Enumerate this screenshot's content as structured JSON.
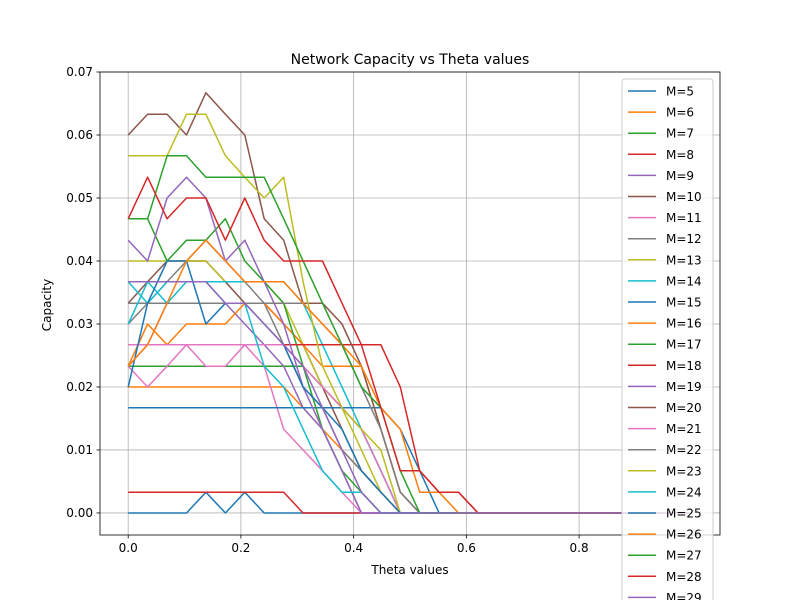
{
  "chart_data": {
    "type": "line",
    "title": "Network Capacity vs Theta values",
    "xlabel": "Theta values",
    "ylabel": "Capacity",
    "xlim": [
      -0.05,
      1.05
    ],
    "ylim": [
      -0.0035,
      0.07
    ],
    "xticks": [
      0.0,
      0.2,
      0.4,
      0.6,
      0.8
    ],
    "xtick_labels": [
      "0.0",
      "0.2",
      "0.4",
      "0.6",
      "0.8"
    ],
    "yticks": [
      0.0,
      0.01,
      0.02,
      0.03,
      0.04,
      0.05,
      0.06,
      0.07
    ],
    "ytick_labels": [
      "0.00",
      "0.01",
      "0.02",
      "0.03",
      "0.04",
      "0.05",
      "0.06",
      "0.07"
    ],
    "grid": true,
    "legend_position": "top-right",
    "x": [
      0,
      0.0345,
      0.069,
      0.1034,
      0.1379,
      0.1724,
      0.2069,
      0.2414,
      0.2759,
      0.3103,
      0.3448,
      0.3793,
      0.4138,
      0.4483,
      0.4828,
      0.5172,
      0.5517,
      0.5862,
      0.6207,
      0.6552,
      0.6897,
      0.7241,
      0.7586,
      0.7931,
      0.8276,
      0.8621,
      0.8966,
      0.931,
      0.9655,
      1.0
    ],
    "series": [
      {
        "name": "M=5",
        "color": "#1f77b4",
        "values": [
          0,
          0,
          0,
          0,
          0.0033,
          0,
          0.0033,
          0,
          0,
          0,
          0,
          0,
          0,
          0,
          0,
          0,
          0,
          0,
          0,
          0,
          0,
          0,
          0,
          0,
          0,
          0,
          0,
          0,
          0,
          0
        ]
      },
      {
        "name": "M=6",
        "color": "#ff7f0e",
        "values": [
          0.02,
          0.02,
          0.02,
          0.02,
          0.02,
          0.02,
          0.02,
          0.02,
          0.02,
          0.0167,
          0.0133,
          0.01,
          0.0067,
          0.0033,
          0,
          0,
          0,
          0,
          0,
          0,
          0,
          0,
          0,
          0,
          0,
          0,
          0,
          0,
          0,
          0
        ]
      },
      {
        "name": "M=7",
        "color": "#2ca02c",
        "values": [
          0.0233,
          0.0233,
          0.0233,
          0.0233,
          0.0233,
          0.0233,
          0.0233,
          0.0233,
          0.0233,
          0.0233,
          0.02,
          0.0167,
          0.0133,
          0.0067,
          0,
          0,
          0,
          0,
          0,
          0,
          0,
          0,
          0,
          0,
          0,
          0,
          0,
          0,
          0,
          0
        ]
      },
      {
        "name": "M=8",
        "color": "#d62728",
        "values": [
          0.0033,
          0.0033,
          0.0033,
          0.0033,
          0.0033,
          0.0033,
          0.0033,
          0.0033,
          0.0033,
          0,
          0,
          0,
          0,
          0,
          0,
          0,
          0,
          0,
          0,
          0,
          0,
          0,
          0,
          0,
          0,
          0,
          0,
          0,
          0,
          0
        ]
      },
      {
        "name": "M=9",
        "color": "#9467bd",
        "values": [
          0.0233,
          0.0267,
          0.0333,
          0.0333,
          0.0333,
          0.0333,
          0.03,
          0.0267,
          0.0233,
          0.0167,
          0.0133,
          0.0067,
          0,
          0,
          0,
          0,
          0,
          0,
          0,
          0,
          0,
          0,
          0,
          0,
          0,
          0,
          0,
          0,
          0,
          0
        ]
      },
      {
        "name": "M=10",
        "color": "#8c564b",
        "values": [
          0.0333,
          0.0367,
          0.04,
          0.04,
          0.04,
          0.0367,
          0.0333,
          0.0333,
          0.03,
          0.0267,
          0.02,
          0.0133,
          0.0067,
          0.0033,
          0,
          0,
          0,
          0,
          0,
          0,
          0,
          0,
          0,
          0,
          0,
          0,
          0,
          0,
          0,
          0
        ]
      },
      {
        "name": "M=11",
        "color": "#e377c2",
        "values": [
          0.0233,
          0.02,
          0.0233,
          0.0267,
          0.0233,
          0.0233,
          0.0267,
          0.0233,
          0.0133,
          0.01,
          0.0067,
          0.0033,
          0,
          0,
          0,
          0,
          0,
          0,
          0,
          0,
          0,
          0,
          0,
          0,
          0,
          0,
          0,
          0,
          0,
          0
        ]
      },
      {
        "name": "M=12",
        "color": "#7f7f7f",
        "values": [
          0.03,
          0.0333,
          0.0367,
          0.04,
          0.0433,
          0.04,
          0.0367,
          0.0333,
          0.0267,
          0.02,
          0.0167,
          0.01,
          0.0067,
          0.0033,
          0,
          0,
          0,
          0,
          0,
          0,
          0,
          0,
          0,
          0,
          0,
          0,
          0,
          0,
          0,
          0
        ]
      },
      {
        "name": "M=13",
        "color": "#bcbd22",
        "values": [
          0.04,
          0.04,
          0.04,
          0.04,
          0.04,
          0.0367,
          0.0367,
          0.0367,
          0.0333,
          0.0267,
          0.02,
          0.0167,
          0.01,
          0.0033,
          0,
          0,
          0,
          0,
          0,
          0,
          0,
          0,
          0,
          0,
          0,
          0,
          0,
          0,
          0,
          0
        ]
      },
      {
        "name": "M=14",
        "color": "#17becf",
        "values": [
          0.0367,
          0.0333,
          0.0367,
          0.0367,
          0.0367,
          0.0367,
          0.0367,
          0.0367,
          0.0367,
          0.0333,
          0.0267,
          0.02,
          0.0133,
          0.0067,
          0,
          0,
          0,
          0,
          0,
          0,
          0,
          0,
          0,
          0,
          0,
          0,
          0,
          0,
          0,
          0
        ]
      },
      {
        "name": "M=15",
        "color": "#1f77b4",
        "values": [
          0.0167,
          0.0167,
          0.0167,
          0.0167,
          0.0167,
          0.0167,
          0.0167,
          0.0167,
          0.0167,
          0.0167,
          0.0167,
          0.0167,
          0.0167,
          0.0167,
          0.0133,
          0.0067,
          0,
          0,
          0,
          0,
          0,
          0,
          0,
          0,
          0,
          0,
          0,
          0,
          0,
          0
        ]
      },
      {
        "name": "M=16",
        "color": "#ff7f0e",
        "values": [
          0.0233,
          0.03,
          0.0267,
          0.03,
          0.03,
          0.03,
          0.0333,
          0.0333,
          0.03,
          0.0267,
          0.0233,
          0.0233,
          0.0233,
          0.0133,
          0.0033,
          0,
          0,
          0,
          0,
          0,
          0,
          0,
          0,
          0,
          0,
          0,
          0,
          0,
          0,
          0
        ]
      },
      {
        "name": "M=17",
        "color": "#2ca02c",
        "values": [
          0.0467,
          0.0467,
          0.04,
          0.0433,
          0.0433,
          0.0467,
          0.04,
          0.0367,
          0.0333,
          0.0233,
          0.0133,
          0.0067,
          0.0033,
          0,
          0,
          0,
          0,
          0,
          0,
          0,
          0,
          0,
          0,
          0,
          0,
          0,
          0,
          0,
          0,
          0
        ]
      },
      {
        "name": "M=18",
        "color": "#d62728",
        "values": [
          0.0267,
          0.0267,
          0.0267,
          0.0267,
          0.0267,
          0.0267,
          0.0267,
          0.0267,
          0.0267,
          0.0267,
          0.0267,
          0.0267,
          0.0267,
          0.0267,
          0.02,
          0.0067,
          0.0033,
          0.0033,
          0,
          0,
          0,
          0,
          0,
          0,
          0,
          0,
          0,
          0,
          0,
          0
        ]
      },
      {
        "name": "M=19",
        "color": "#9467bd",
        "values": [
          0.0433,
          0.04,
          0.05,
          0.0533,
          0.05,
          0.04,
          0.0433,
          0.0367,
          0.03,
          0.02,
          0.0133,
          0.0067,
          0,
          0,
          0,
          0,
          0,
          0,
          0,
          0,
          0,
          0,
          0,
          0,
          0,
          0,
          0,
          0,
          0,
          0
        ]
      },
      {
        "name": "M=20",
        "color": "#8c564b",
        "values": [
          0.06,
          0.0633,
          0.0633,
          0.06,
          0.0667,
          0.0633,
          0.06,
          0.0467,
          0.0433,
          0.0333,
          0.0333,
          0.03,
          0.0233,
          0.0133,
          0.0033,
          0,
          0,
          0,
          0,
          0,
          0,
          0,
          0,
          0,
          0,
          0,
          0,
          0,
          0,
          0
        ]
      },
      {
        "name": "M=21",
        "color": "#e377c2",
        "values": [
          0.0267,
          0.0267,
          0.0267,
          0.0267,
          0.0267,
          0.0267,
          0.0267,
          0.0267,
          0.0267,
          0.0233,
          0.02,
          0.0167,
          0.0133,
          0.0067,
          0,
          0,
          0,
          0,
          0,
          0,
          0,
          0,
          0,
          0,
          0,
          0,
          0,
          0,
          0,
          0
        ]
      },
      {
        "name": "M=22",
        "color": "#7f7f7f",
        "values": [
          0.0333,
          0.0333,
          0.0333,
          0.0333,
          0.0333,
          0.0333,
          0.0333,
          0.0333,
          0.0333,
          0.0333,
          0.03,
          0.0267,
          0.02,
          0.0133,
          0.0033,
          0,
          0,
          0,
          0,
          0,
          0,
          0,
          0,
          0,
          0,
          0,
          0,
          0,
          0,
          0
        ]
      },
      {
        "name": "M=23",
        "color": "#bcbd22",
        "values": [
          0.0567,
          0.0567,
          0.0567,
          0.0633,
          0.0633,
          0.0567,
          0.0533,
          0.05,
          0.0533,
          0.0367,
          0.0233,
          0.0167,
          0.0133,
          0.01,
          0,
          0,
          0,
          0,
          0,
          0,
          0,
          0,
          0,
          0,
          0,
          0,
          0,
          0,
          0,
          0
        ]
      },
      {
        "name": "M=24",
        "color": "#17becf",
        "values": [
          0.03,
          0.0367,
          0.0333,
          0.0367,
          0.0367,
          0.0333,
          0.0333,
          0.0233,
          0.02,
          0.0133,
          0.0067,
          0.0033,
          0.0033,
          0,
          0,
          0,
          0,
          0,
          0,
          0,
          0,
          0,
          0,
          0,
          0,
          0,
          0,
          0,
          0,
          0
        ]
      },
      {
        "name": "M=25",
        "color": "#1f77b4",
        "values": [
          0.02,
          0.0333,
          0.04,
          0.04,
          0.03,
          0.0333,
          0.0333,
          0.03,
          0.0267,
          0.02,
          0.0167,
          0.0133,
          0.0067,
          0.0033,
          0,
          0,
          0,
          0,
          0,
          0,
          0,
          0,
          0,
          0,
          0,
          0,
          0,
          0,
          0,
          0
        ]
      },
      {
        "name": "M=26",
        "color": "#ff7f0e",
        "values": [
          0.0233,
          0.0267,
          0.0333,
          0.04,
          0.0433,
          0.04,
          0.0367,
          0.0367,
          0.0367,
          0.0333,
          0.03,
          0.0267,
          0.0233,
          0.0167,
          0.0133,
          0.0033,
          0.0033,
          0,
          0,
          0,
          0,
          0,
          0,
          0,
          0,
          0,
          0,
          0,
          0,
          0
        ]
      },
      {
        "name": "M=27",
        "color": "#2ca02c",
        "values": [
          0.0467,
          0.0467,
          0.0567,
          0.0567,
          0.0533,
          0.0533,
          0.0533,
          0.0533,
          0.0467,
          0.04,
          0.0333,
          0.0267,
          0.02,
          0.0167,
          0.0067,
          0,
          0,
          0,
          0,
          0,
          0,
          0,
          0,
          0,
          0,
          0,
          0,
          0,
          0,
          0
        ]
      },
      {
        "name": "M=28",
        "color": "#d62728",
        "values": [
          0.0467,
          0.0533,
          0.0467,
          0.05,
          0.05,
          0.0433,
          0.05,
          0.0433,
          0.04,
          0.04,
          0.04,
          0.0333,
          0.0267,
          0.0167,
          0.0067,
          0.0067,
          0.0033,
          0.0033,
          0,
          0,
          0,
          0,
          0,
          0,
          0,
          0,
          0,
          0,
          0,
          0
        ]
      },
      {
        "name": "M=29",
        "color": "#9467bd",
        "values": [
          0.0367,
          0.0367,
          0.0367,
          0.0367,
          0.0367,
          0.0333,
          0.0333,
          0.03,
          0.0267,
          0.0233,
          0.0167,
          0.01,
          0.0033,
          0,
          0,
          0,
          0,
          0,
          0,
          0,
          0,
          0,
          0,
          0,
          0,
          0,
          0,
          0,
          0,
          0
        ]
      }
    ]
  }
}
